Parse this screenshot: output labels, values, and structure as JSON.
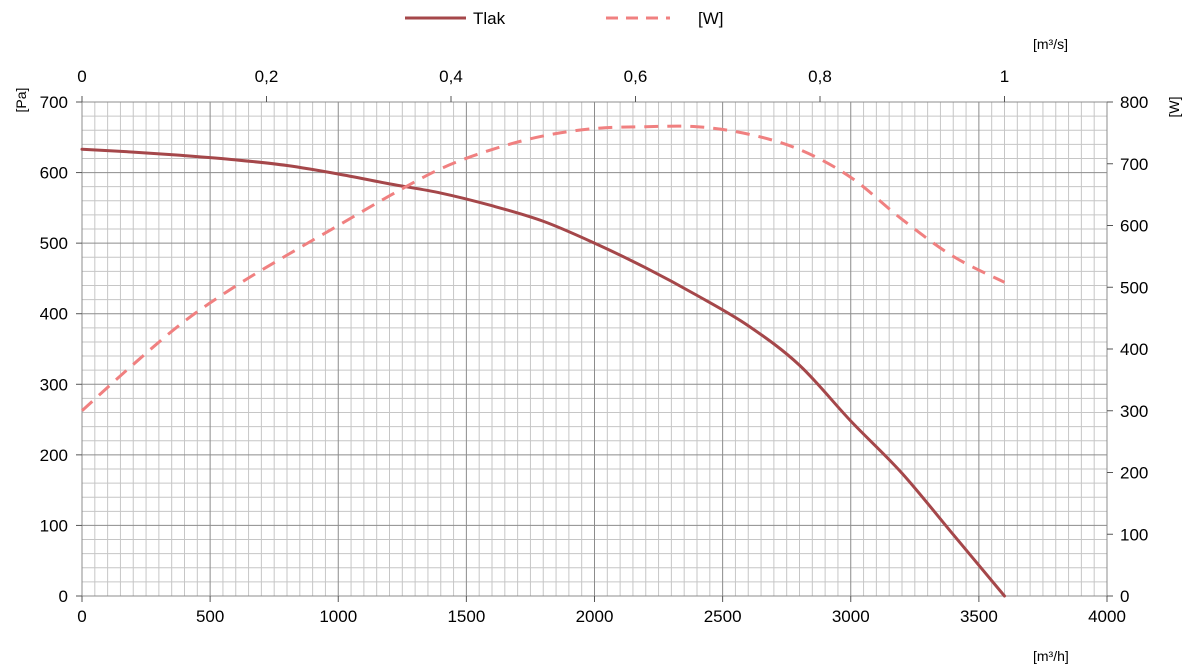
{
  "chart_data": {
    "type": "line",
    "legend": {
      "position": "top",
      "entries": [
        {
          "series": 0,
          "label": "Tlak"
        },
        {
          "series": 1,
          "label": "[W]"
        }
      ]
    },
    "colors": {
      "pressure": "#A5474A",
      "power": "#F08080",
      "grid_major": "#8c8c8c",
      "grid_minor": "#c6c6c6"
    },
    "grid": true,
    "x_axis": {
      "unit_label": "[m³/h]",
      "range": [
        0,
        4000
      ],
      "ticks": [
        0,
        500,
        1000,
        1500,
        2000,
        2500,
        3000,
        3500,
        4000
      ],
      "tick_labels": [
        "0",
        "500",
        "1000",
        "1500",
        "2000",
        "2500",
        "3000",
        "3500",
        "4000"
      ]
    },
    "x2_axis": {
      "unit_label": "[m³/s]",
      "position": "top",
      "range": [
        0,
        1.1111
      ],
      "ticks": [
        0,
        0.2,
        0.4,
        0.6,
        0.8,
        1
      ],
      "tick_labels": [
        "0",
        "0,2",
        "0,4",
        "0,6",
        "0,8",
        "1"
      ]
    },
    "y_axis": {
      "unit_label": "[Pa]",
      "range": [
        0,
        700
      ],
      "ticks": [
        0,
        100,
        200,
        300,
        400,
        500,
        600,
        700
      ],
      "tick_labels": [
        "0",
        "100",
        "200",
        "300",
        "400",
        "500",
        "600",
        "700"
      ]
    },
    "y2_axis": {
      "unit_label": "[W]",
      "range": [
        0,
        800
      ],
      "ticks": [
        0,
        100,
        200,
        300,
        400,
        500,
        600,
        700,
        800
      ],
      "tick_labels": [
        "0",
        "100",
        "200",
        "300",
        "400",
        "500",
        "600",
        "700",
        "800"
      ]
    },
    "series": [
      {
        "name": "Tlak",
        "axis": "left",
        "style": "solid",
        "x": [
          0,
          200,
          400,
          600,
          800,
          1000,
          1200,
          1400,
          1600,
          1800,
          2000,
          2200,
          2400,
          2600,
          2800,
          3000,
          3200,
          3400,
          3600
        ],
        "y": [
          633,
          629,
          624,
          618,
          610,
          598,
          584,
          571,
          553,
          531,
          500,
          465,
          426,
          383,
          327,
          248,
          174,
          87,
          0
        ]
      },
      {
        "name": "[W]",
        "axis": "right",
        "style": "dashed",
        "x": [
          0,
          200,
          400,
          600,
          800,
          1000,
          1200,
          1400,
          1600,
          1800,
          2000,
          2200,
          2400,
          2600,
          2800,
          3000,
          3200,
          3400,
          3600
        ],
        "y": [
          300,
          375,
          445,
          502,
          552,
          600,
          648,
          692,
          723,
          745,
          757,
          760,
          760,
          748,
          723,
          678,
          610,
          550,
          508
        ]
      }
    ]
  }
}
